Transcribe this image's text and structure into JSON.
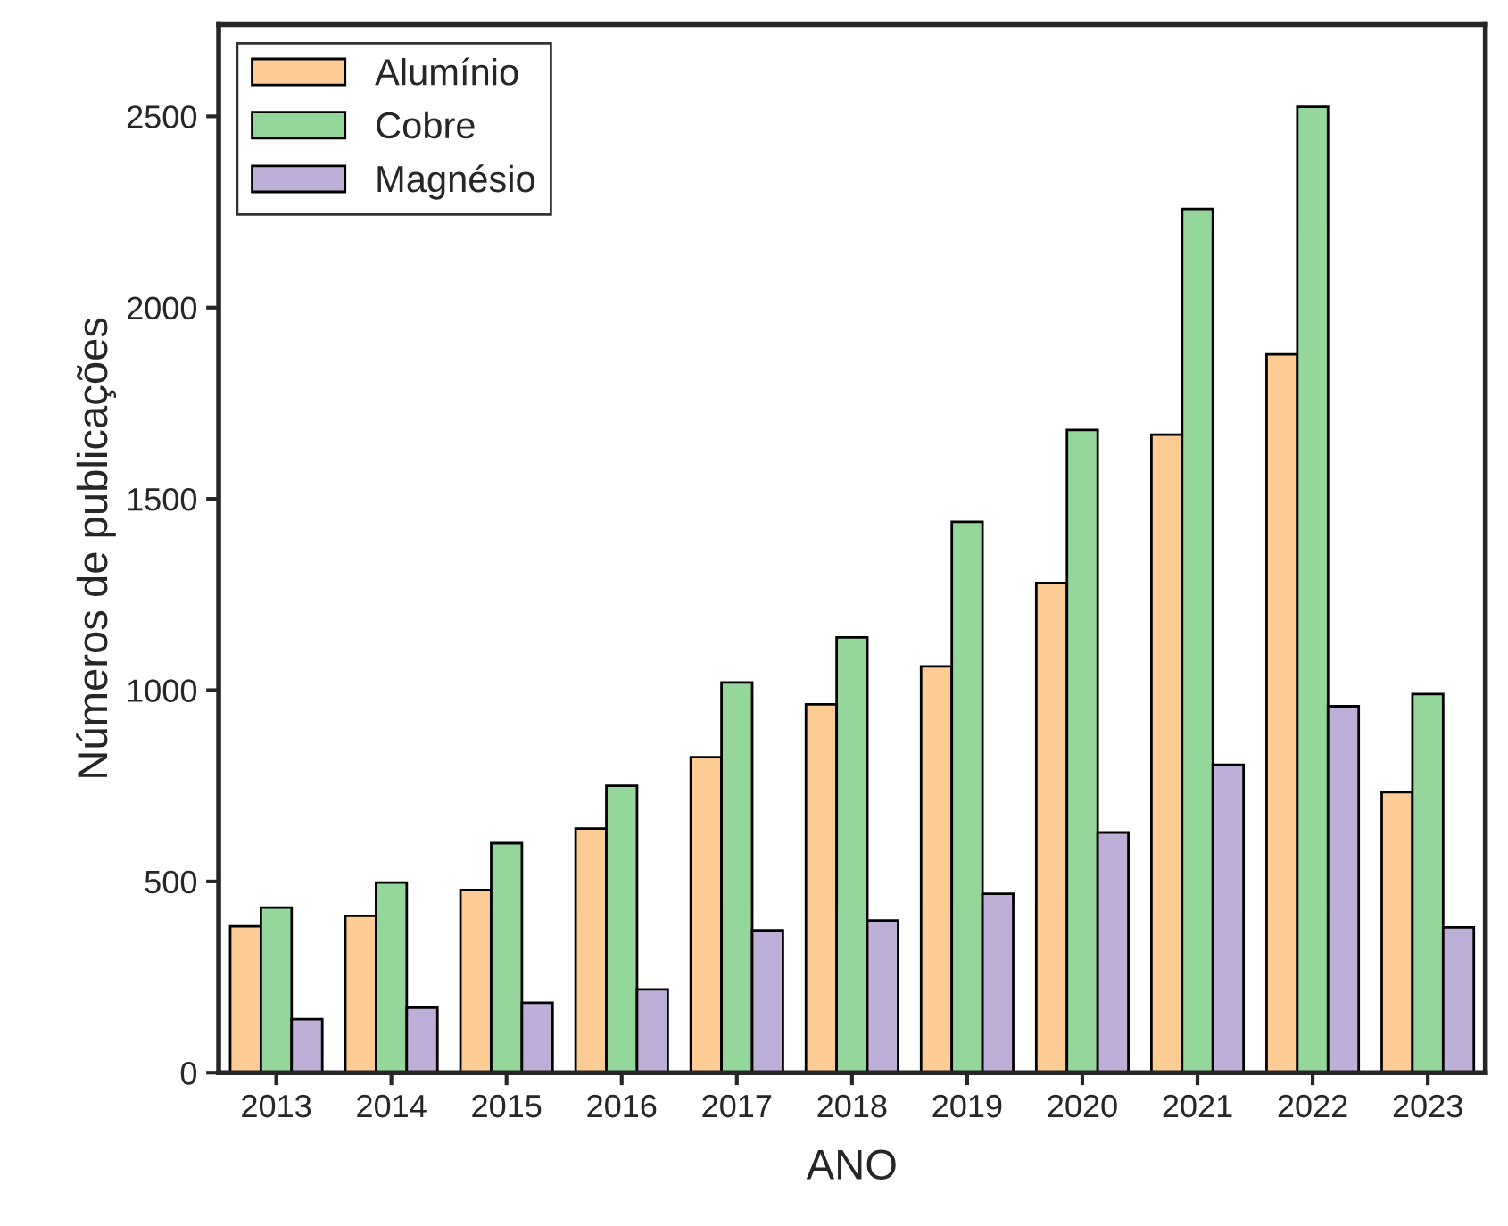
{
  "chart_data": {
    "type": "bar",
    "xlabel": "ANO",
    "ylabel": "Números de publicações",
    "categories": [
      "2013",
      "2014",
      "2015",
      "2016",
      "2017",
      "2018",
      "2019",
      "2020",
      "2021",
      "2022",
      "2023"
    ],
    "series": [
      {
        "name": "Alumínio",
        "color": "#fdcc95",
        "values": [
          383,
          410,
          478,
          638,
          825,
          963,
          1062,
          1280,
          1668,
          1878,
          733
        ]
      },
      {
        "name": "Cobre",
        "color": "#95d69b",
        "values": [
          432,
          497,
          600,
          750,
          1020,
          1138,
          1440,
          1680,
          2258,
          2525,
          990
        ]
      },
      {
        "name": "Magnésio",
        "color": "#bdafd7",
        "values": [
          140,
          170,
          183,
          218,
          372,
          398,
          468,
          628,
          805,
          958,
          380
        ]
      }
    ],
    "ylim": [
      0,
      2740
    ],
    "yticks": [
      0,
      500,
      1000,
      1500,
      2000,
      2500
    ],
    "grid": false,
    "legend": "top left"
  }
}
